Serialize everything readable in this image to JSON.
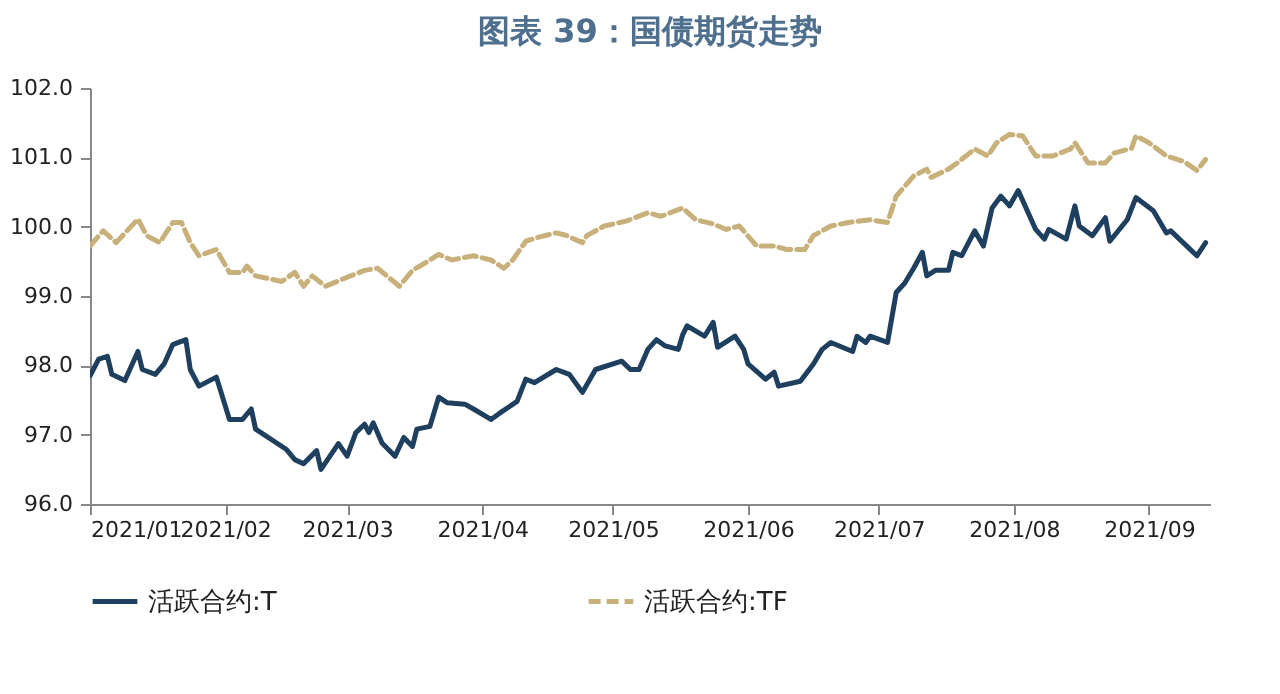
{
  "chart_data": {
    "type": "line",
    "title": "图表 39：国债期货走势",
    "xlim": [
      "2021-01-01",
      "2021-09-15"
    ],
    "xticks": [
      {
        "value": "2021-01-01",
        "label": "2021/01"
      },
      {
        "value": "2021-02-01",
        "label": "2021/02"
      },
      {
        "value": "2021-03-01",
        "label": "2021/03"
      },
      {
        "value": "2021-04-01",
        "label": "2021/04"
      },
      {
        "value": "2021-05-01",
        "label": "2021/05"
      },
      {
        "value": "2021-06-01",
        "label": "2021/06"
      },
      {
        "value": "2021-07-01",
        "label": "2021/07"
      },
      {
        "value": "2021-08-01",
        "label": "2021/08"
      },
      {
        "value": "2021-09-01",
        "label": "2021/09"
      }
    ],
    "ylim": [
      96,
      102
    ],
    "yticks": [
      {
        "value": 96,
        "label": "96.0"
      },
      {
        "value": 97,
        "label": "97.0"
      },
      {
        "value": 98,
        "label": "98.0"
      },
      {
        "value": 99,
        "label": "99.0"
      },
      {
        "value": 100,
        "label": "100.0"
      },
      {
        "value": 101,
        "label": "101.0"
      },
      {
        "value": 102,
        "label": "102.0"
      }
    ],
    "grid": false,
    "legend": "bottom",
    "marker": "none",
    "series": [
      {
        "name": "活跃合约:T",
        "color": "#1f3f5f",
        "line_style": "solid",
        "x": [
          "2021-01-01",
          "2021-01-03",
          "2021-01-05",
          "2021-01-06",
          "2021-01-09",
          "2021-01-12",
          "2021-01-13",
          "2021-01-16",
          "2021-01-18",
          "2021-01-20",
          "2021-01-23",
          "2021-01-24",
          "2021-01-26",
          "2021-01-30",
          "2021-02-02",
          "2021-02-05",
          "2021-02-07",
          "2021-02-08",
          "2021-02-15",
          "2021-02-17",
          "2021-02-19",
          "2021-02-22",
          "2021-02-23",
          "2021-02-27",
          "2021-03-01",
          "2021-03-03",
          "2021-03-05",
          "2021-03-06",
          "2021-03-07",
          "2021-03-09",
          "2021-03-12",
          "2021-03-14",
          "2021-03-16",
          "2021-03-17",
          "2021-03-20",
          "2021-03-22",
          "2021-03-24",
          "2021-03-28",
          "2021-03-30",
          "2021-04-03",
          "2021-04-05",
          "2021-04-09",
          "2021-04-11",
          "2021-04-13",
          "2021-04-18",
          "2021-04-21",
          "2021-04-24",
          "2021-04-27",
          "2021-05-03",
          "2021-05-05",
          "2021-05-07",
          "2021-05-09",
          "2021-05-11",
          "2021-05-13",
          "2021-05-16",
          "2021-05-17",
          "2021-05-18",
          "2021-05-22",
          "2021-05-24",
          "2021-05-25",
          "2021-05-29",
          "2021-05-31",
          "2021-06-01",
          "2021-06-05",
          "2021-06-07",
          "2021-06-08",
          "2021-06-13",
          "2021-06-16",
          "2021-06-18",
          "2021-06-20",
          "2021-06-25",
          "2021-06-26",
          "2021-06-28",
          "2021-06-29",
          "2021-07-03",
          "2021-07-05",
          "2021-07-07",
          "2021-07-09",
          "2021-07-11",
          "2021-07-12",
          "2021-07-14",
          "2021-07-17",
          "2021-07-18",
          "2021-07-20",
          "2021-07-23",
          "2021-07-25",
          "2021-07-27",
          "2021-07-29",
          "2021-07-31",
          "2021-08-02",
          "2021-08-06",
          "2021-08-08",
          "2021-08-09",
          "2021-08-13",
          "2021-08-15",
          "2021-08-16",
          "2021-08-19",
          "2021-08-22",
          "2021-08-23",
          "2021-08-27",
          "2021-08-29",
          "2021-09-02",
          "2021-09-05",
          "2021-09-06",
          "2021-09-12",
          "2021-09-14"
        ],
        "values": [
          97.85,
          98.09,
          98.13,
          97.87,
          97.78,
          98.2,
          97.94,
          97.87,
          98.02,
          98.3,
          98.37,
          97.94,
          97.7,
          97.83,
          97.22,
          97.22,
          97.37,
          97.08,
          96.79,
          96.64,
          96.58,
          96.77,
          96.5,
          96.87,
          96.69,
          97.03,
          97.15,
          97.03,
          97.17,
          96.88,
          96.69,
          96.96,
          96.83,
          97.08,
          97.12,
          97.54,
          97.46,
          97.44,
          97.37,
          97.22,
          97.31,
          97.48,
          97.8,
          97.75,
          97.94,
          97.87,
          97.61,
          97.94,
          98.06,
          97.94,
          97.94,
          98.23,
          98.37,
          98.28,
          98.23,
          98.44,
          98.57,
          98.42,
          98.62,
          98.26,
          98.42,
          98.23,
          98.02,
          97.8,
          97.9,
          97.7,
          97.77,
          98.02,
          98.23,
          98.33,
          98.2,
          98.42,
          98.33,
          98.42,
          98.33,
          99.05,
          99.19,
          99.4,
          99.63,
          99.29,
          99.37,
          99.37,
          99.63,
          99.58,
          99.94,
          99.72,
          100.27,
          100.44,
          100.3,
          100.52,
          99.96,
          99.82,
          99.96,
          99.82,
          100.3,
          100.01,
          99.87,
          100.13,
          99.79,
          100.1,
          100.42,
          100.23,
          99.91,
          99.94,
          99.58,
          99.77
        ]
      },
      {
        "name": "活跃合约:TF",
        "color": "#c8b07a",
        "line_style": "dashed",
        "x": [
          "2021-01-01",
          "2021-01-04",
          "2021-01-07",
          "2021-01-12",
          "2021-01-14",
          "2021-01-17",
          "2021-01-20",
          "2021-01-22",
          "2021-01-24",
          "2021-01-26",
          "2021-01-30",
          "2021-02-02",
          "2021-02-05",
          "2021-02-06",
          "2021-02-08",
          "2021-02-14",
          "2021-02-17",
          "2021-02-19",
          "2021-02-21",
          "2021-02-24",
          "2021-03-01",
          "2021-03-05",
          "2021-03-08",
          "2021-03-13",
          "2021-03-16",
          "2021-03-19",
          "2021-03-22",
          "2021-03-25",
          "2021-03-30",
          "2021-04-03",
          "2021-04-06",
          "2021-04-08",
          "2021-04-11",
          "2021-04-14",
          "2021-04-18",
          "2021-04-20",
          "2021-04-24",
          "2021-04-25",
          "2021-04-29",
          "2021-05-04",
          "2021-05-09",
          "2021-05-12",
          "2021-05-17",
          "2021-05-20",
          "2021-05-24",
          "2021-05-27",
          "2021-05-30",
          "2021-06-03",
          "2021-06-07",
          "2021-06-10",
          "2021-06-14",
          "2021-06-16",
          "2021-06-20",
          "2021-06-24",
          "2021-06-29",
          "2021-07-03",
          "2021-07-05",
          "2021-07-09",
          "2021-07-12",
          "2021-07-13",
          "2021-07-17",
          "2021-07-19",
          "2021-07-23",
          "2021-07-26",
          "2021-07-28",
          "2021-07-31",
          "2021-08-03",
          "2021-08-06",
          "2021-08-10",
          "2021-08-14",
          "2021-08-15",
          "2021-08-18",
          "2021-08-22",
          "2021-08-24",
          "2021-08-28",
          "2021-08-29",
          "2021-09-01",
          "2021-09-05",
          "2021-09-09",
          "2021-09-12",
          "2021-09-14"
        ],
        "values": [
          99.72,
          99.94,
          99.77,
          100.11,
          99.87,
          99.77,
          100.06,
          100.06,
          99.77,
          99.58,
          99.67,
          99.34,
          99.34,
          99.43,
          99.29,
          99.21,
          99.34,
          99.14,
          99.29,
          99.14,
          99.27,
          99.37,
          99.4,
          99.14,
          99.37,
          99.48,
          99.6,
          99.52,
          99.58,
          99.52,
          99.4,
          99.52,
          99.79,
          99.85,
          99.91,
          99.88,
          99.77,
          99.87,
          100.01,
          100.08,
          100.2,
          100.15,
          100.27,
          100.1,
          100.04,
          99.96,
          100.01,
          99.72,
          99.72,
          99.67,
          99.67,
          99.87,
          100.01,
          100.06,
          100.1,
          100.06,
          100.44,
          100.73,
          100.83,
          100.71,
          100.83,
          100.92,
          101.12,
          101.02,
          101.21,
          101.33,
          101.31,
          101.02,
          101.02,
          101.12,
          101.21,
          100.92,
          100.92,
          101.06,
          101.13,
          101.31,
          101.21,
          101.02,
          100.94,
          100.81,
          100.97
        ]
      }
    ]
  }
}
